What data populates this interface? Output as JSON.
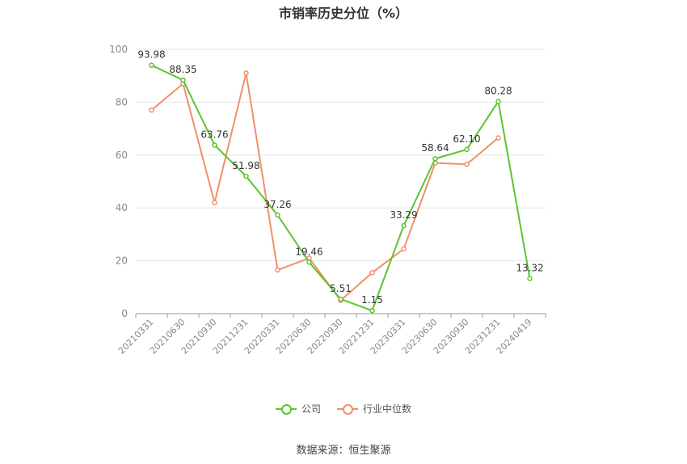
{
  "chart_data": {
    "type": "line",
    "title": "市销率历史分位（%）",
    "categories": [
      "20210331",
      "20210630",
      "20210930",
      "20211231",
      "20220331",
      "20220630",
      "20220930",
      "20221231",
      "20230331",
      "20230630",
      "20230930",
      "20231231",
      "20240419"
    ],
    "series": [
      {
        "name": "公司",
        "color": "#5cc42f",
        "values": [
          93.98,
          88.35,
          63.76,
          51.98,
          37.26,
          19.46,
          5.51,
          1.15,
          33.29,
          58.64,
          62.1,
          80.28,
          13.32
        ],
        "labels": [
          "93.98",
          "88.35",
          "63.76",
          "51.98",
          "37.26",
          "19.46",
          "5.51",
          "1.15",
          "33.29",
          "58.64",
          "62.10",
          "80.28",
          "13.32"
        ]
      },
      {
        "name": "行业中位数",
        "color": "#f0906a",
        "values": [
          77,
          87,
          42,
          91,
          16.5,
          21,
          5,
          15.5,
          24.5,
          57,
          56.5,
          66.5,
          null
        ]
      }
    ],
    "ylim": [
      0,
      100
    ],
    "yticks": [
      "0",
      "20",
      "40",
      "60",
      "80",
      "100"
    ],
    "grid": true,
    "legend_position": "bottom"
  },
  "source": "数据来源：恒生聚源"
}
